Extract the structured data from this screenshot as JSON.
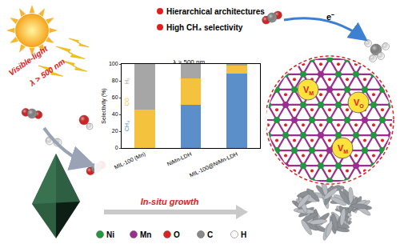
{
  "chart_data": {
    "type": "bar",
    "stacked": true,
    "title": "λ > 500 nm",
    "y_label": "Selectivity (%)",
    "categories": [
      "MIL-100 (Mn)",
      "NiMn-LDH",
      "MIL-100@NiMn-LDH"
    ],
    "series": [
      {
        "name": "CH₄",
        "color": "#5b8fc9",
        "values": [
          0,
          51,
          89
        ]
      },
      {
        "name": "CO",
        "color": "#f5c23e",
        "values": [
          46,
          32,
          9
        ]
      },
      {
        "name": "H₂",
        "color": "#a6a6a6",
        "values": [
          54,
          17,
          2
        ]
      }
    ],
    "ylim": [
      0,
      100
    ],
    "yticks": [
      0,
      20,
      40,
      60,
      80,
      100
    ],
    "grid": false
  },
  "diagram": {
    "light": {
      "line1": "Visible-light",
      "line2": "λ > 500 nm"
    },
    "highlights": [
      "Hierarchical architectures",
      "High CH₄ selectivity"
    ],
    "electron": "e⁻",
    "growth": "In-situ growth",
    "vacancies": [
      {
        "text": "V",
        "sub": "M"
      },
      {
        "text": "V",
        "sub": "M"
      },
      {
        "text": "V",
        "sub": "O"
      }
    ],
    "elements": [
      {
        "symbol": "Ni",
        "color": "#1f9a3e"
      },
      {
        "symbol": "Mn",
        "color": "#9b2f8f"
      },
      {
        "symbol": "O",
        "color": "#e02020"
      },
      {
        "symbol": "C",
        "color": "#8a8a8a"
      },
      {
        "symbol": "H",
        "color": "#ffffff"
      }
    ]
  }
}
